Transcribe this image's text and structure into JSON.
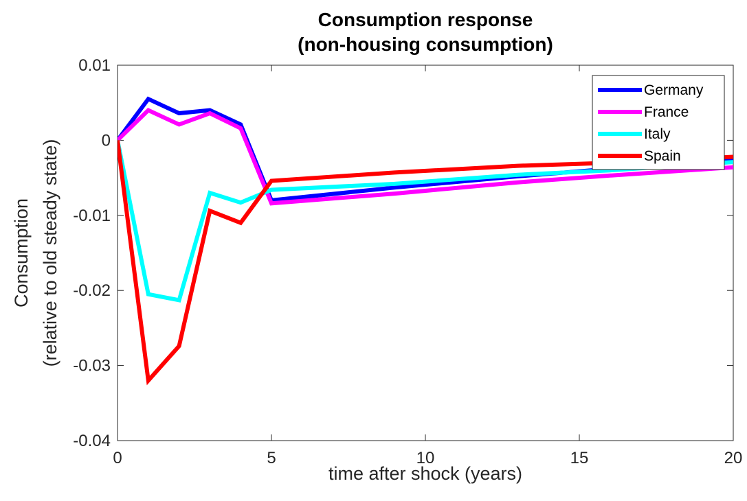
{
  "chart_data": {
    "type": "line",
    "title": [
      "Consumption response",
      "(non-housing consumption)"
    ],
    "xlabel": "time after shock (years)",
    "ylabel": [
      "Consumption",
      "(relative to old steady state)"
    ],
    "xlim": [
      0,
      20
    ],
    "ylim": [
      -0.04,
      0.01
    ],
    "xticks": [
      0,
      5,
      10,
      15,
      20
    ],
    "xtick_labels": [
      "0",
      "5",
      "10",
      "15",
      "20"
    ],
    "yticks": [
      0.01,
      0,
      -0.01,
      -0.02,
      -0.03,
      -0.04
    ],
    "ytick_labels": [
      "0.01",
      "0",
      "-0.01",
      "-0.02",
      "-0.03",
      "-0.04"
    ],
    "grid": false,
    "legend_position": "top-right",
    "x": [
      0,
      1,
      2,
      3,
      4,
      5,
      9,
      13,
      16,
      20
    ],
    "series": [
      {
        "name": "Germany",
        "color": "#0000ff",
        "values": [
          0,
          0.0055,
          0.0036,
          0.004,
          0.0021,
          -0.008,
          -0.0063,
          -0.0048,
          -0.0038,
          -0.0026
        ]
      },
      {
        "name": "France",
        "color": "#ff00ff",
        "values": [
          0,
          0.004,
          0.0021,
          0.0036,
          0.0016,
          -0.0084,
          -0.0071,
          -0.0056,
          -0.0047,
          -0.0036
        ]
      },
      {
        "name": "Italy",
        "color": "#00ffff",
        "values": [
          0,
          -0.0205,
          -0.0213,
          -0.007,
          -0.0083,
          -0.0066,
          -0.0058,
          -0.0046,
          -0.004,
          -0.0029
        ]
      },
      {
        "name": "Spain",
        "color": "#ff0000",
        "values": [
          0,
          -0.032,
          -0.0274,
          -0.0094,
          -0.011,
          -0.0054,
          -0.0043,
          -0.0034,
          -0.003,
          -0.0022
        ]
      }
    ]
  }
}
